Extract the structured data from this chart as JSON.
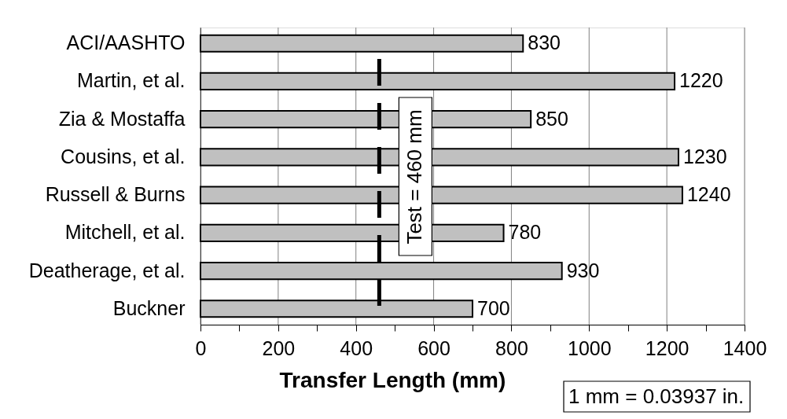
{
  "chart_data": {
    "type": "bar",
    "orientation": "horizontal",
    "xlabel": "Transfer Length (mm)",
    "categories": [
      "ACI/AASHTO",
      "Martin, et al.",
      "Zia & Mostaffa",
      "Cousins, et al.",
      "Russell & Burns",
      "Mitchell, et al.",
      "Deatherage, et al.",
      "Buckner"
    ],
    "values": [
      830,
      1220,
      850,
      1230,
      1240,
      780,
      930,
      700
    ],
    "color": "#c0c0c0",
    "data_labels": true,
    "xlim": [
      0,
      1400
    ],
    "xticks": [
      0,
      {
        "value": 100,
        "label": null
      },
      200,
      {
        "value": 300,
        "label": null
      },
      400,
      {
        "value": 500,
        "label": null
      },
      600,
      {
        "value": 700,
        "label": null
      },
      800,
      {
        "value": 900,
        "label": null
      },
      1000,
      {
        "value": 1100,
        "label": null
      },
      1200,
      {
        "value": 1300,
        "label": null
      },
      1400
    ],
    "grid": "x",
    "ref_lines": [
      {
        "axis": "x",
        "value": 460,
        "label": "Test = 460 mm",
        "color": "#000000",
        "line_style": "dashed"
      }
    ],
    "annotations": [
      "1 mm = 0.03937 in."
    ]
  }
}
